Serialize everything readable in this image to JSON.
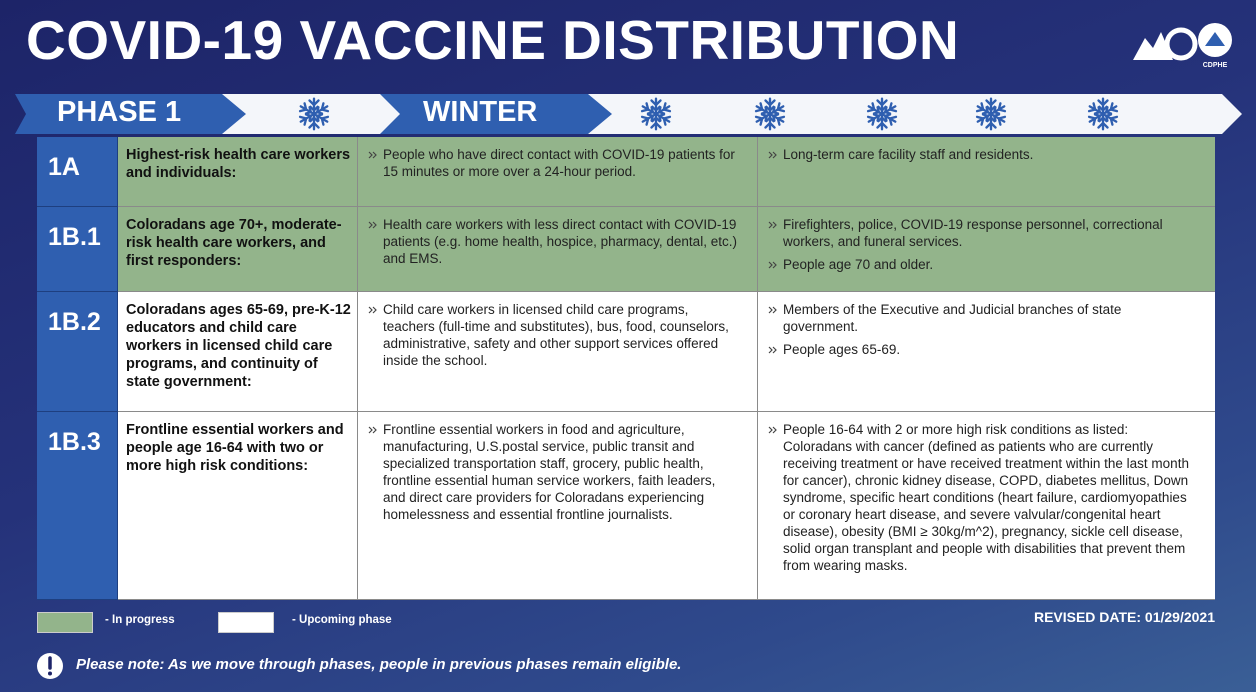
{
  "header": {
    "title": "COVID-19 VACCINE DISTRIBUTION",
    "logo_label": "CDPHE"
  },
  "banner": {
    "phase": "PHASE 1",
    "season": "WINTER"
  },
  "table": {
    "rows": [
      {
        "id": "1A",
        "group": "Highest-risk health care workers and individuals:",
        "color": "#93b48b",
        "left": [
          "People who have direct contact with COVID-19 patients for 15 minutes or more over a 24-hour period."
        ],
        "right": [
          "Long-term care facility staff and residents."
        ]
      },
      {
        "id": "1B.1",
        "group": "Coloradans age 70+, moderate-risk health care workers, and first responders:",
        "color": "#93b48b",
        "left": [
          "Health care workers with less direct contact with COVID-19 patients (e.g. home health, hospice, pharmacy, dental, etc.) and EMS."
        ],
        "right": [
          "Firefighters, police, COVID-19 response personnel, correctional workers, and funeral services.",
          "People age 70 and older."
        ]
      },
      {
        "id": "1B.2",
        "group": "Coloradans ages 65-69, pre-K-12 educators and child care workers in licensed child care programs, and continuity of state government:",
        "color": "#ffffff",
        "left": [
          "Child care workers in licensed child care programs, teachers (full-time and substitutes), bus, food, counselors, administrative, safety and other support services offered inside the school."
        ],
        "right": [
          "Members of the Executive and Judicial branches of state government.",
          "People ages 65-69."
        ]
      },
      {
        "id": "1B.3",
        "group": "Frontline essential workers and people age 16-64 with two or more high risk conditions:",
        "color": "#ffffff",
        "left": [
          "Frontline essential workers in food and agriculture, manufacturing, U.S.postal service, public transit and specialized transportation staff, grocery, public health, frontline essential human service workers, faith leaders, and direct care providers for Coloradans experiencing homelessness and essential frontline journalists."
        ],
        "right": [
          "People 16-64 with 2 or more high risk conditions as listed: Coloradans with cancer (defined as patients who are currently receiving treatment or have received treatment within the last month for cancer), chronic kidney disease, COPD, diabetes mellitus, Down syndrome, specific heart conditions (heart failure, cardiomyopathies or coronary heart disease, and severe valvular/congenital heart disease), obesity (BMI ≥ 30kg/m^2), pregnancy, sickle cell disease, solid organ transplant and people with disabilities that prevent them from wearing masks."
        ]
      }
    ]
  },
  "legend": {
    "items": [
      {
        "color": "#93b48b",
        "label": "- In progress"
      },
      {
        "color": "#ffffff",
        "label": "- Upcoming phase"
      }
    ]
  },
  "revised": "REVISED DATE: 01/29/2021",
  "note": "Please note: As we move through phases, people in previous phases remain eligible."
}
